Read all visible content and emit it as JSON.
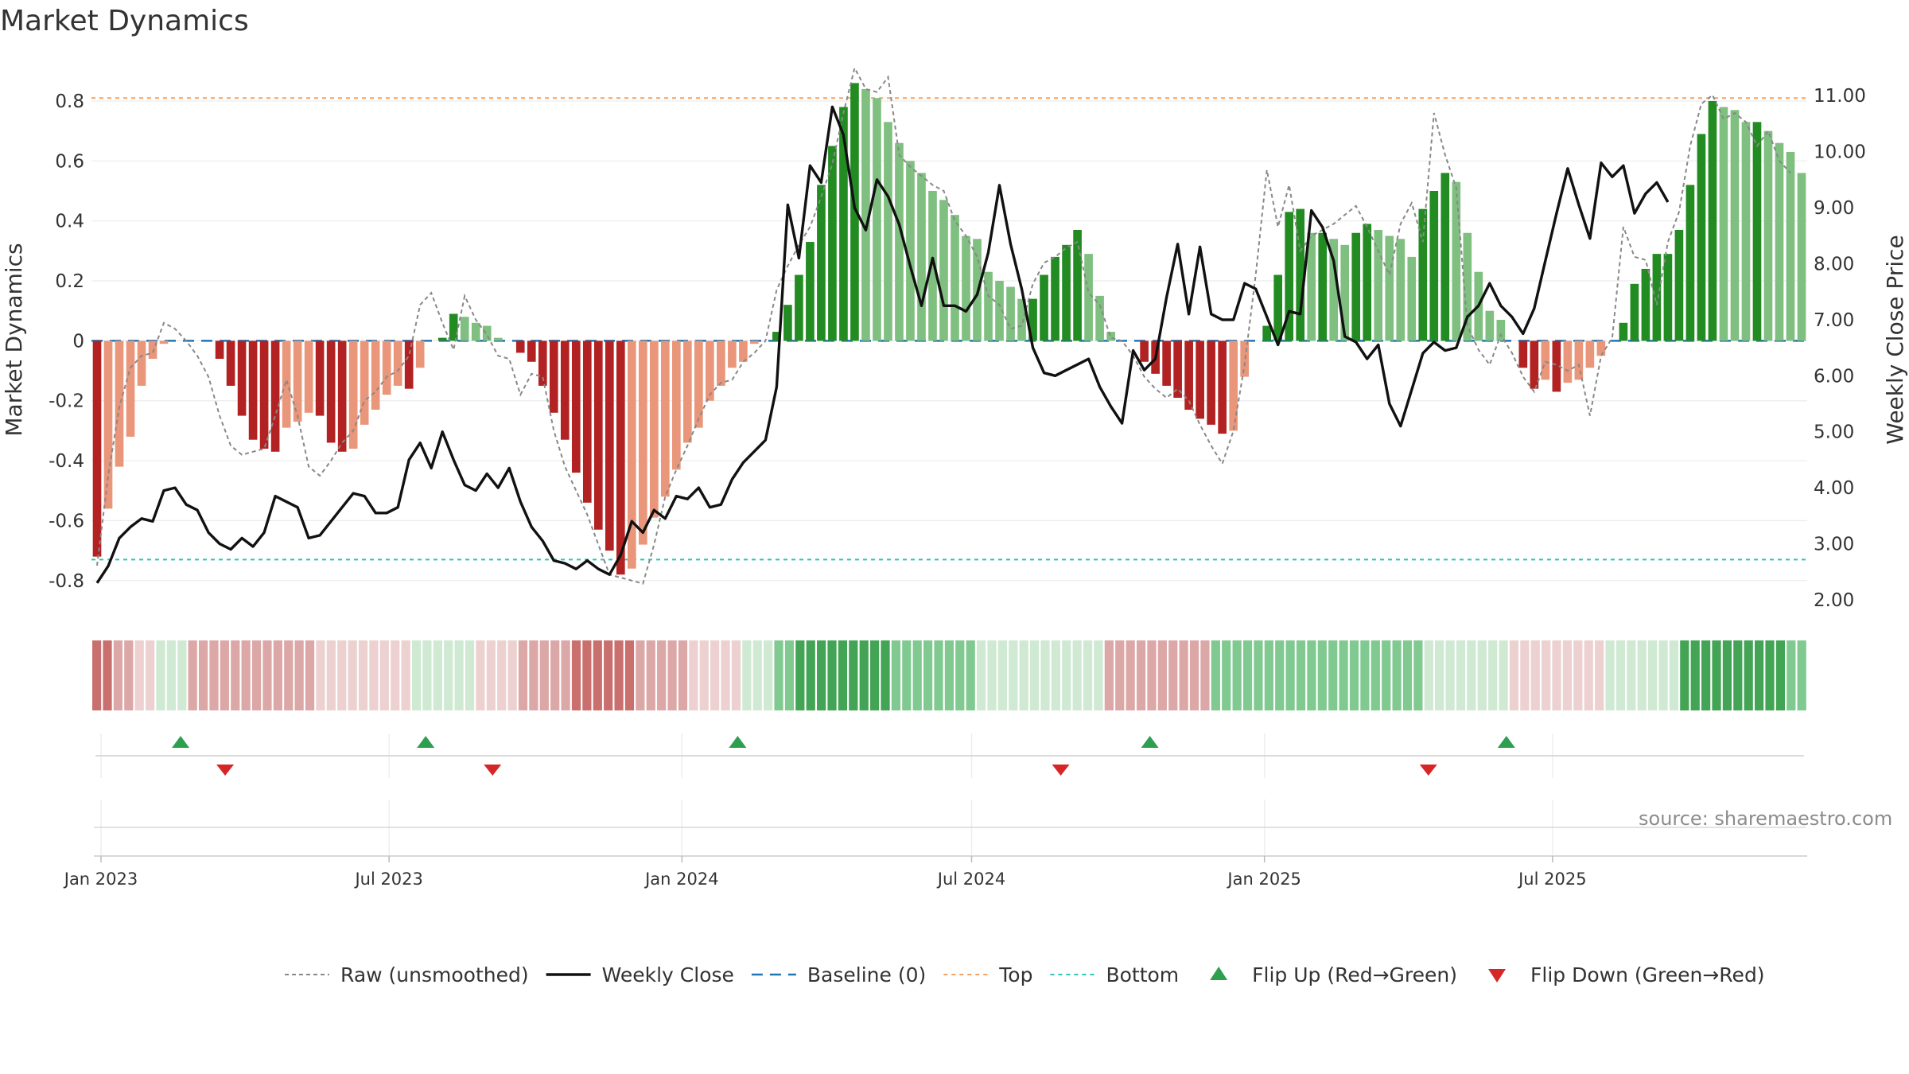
{
  "title": "Market Dynamics",
  "source": "source: sharemaestro.com",
  "chart_data": {
    "type": "bar",
    "title": "Market Dynamics",
    "ylabel": "Market Dynamics",
    "y2label": "Weekly Close Price",
    "ylim": [
      -0.92,
      0.93
    ],
    "y2lim": [
      1.7,
      11.6
    ],
    "yticks": [
      "-0.8",
      "-0.6",
      "-0.4",
      "-0.2",
      "0",
      "0.2",
      "0.4",
      "0.6",
      "0.8"
    ],
    "y2ticks": [
      "2.00",
      "3.00",
      "4.00",
      "5.00",
      "6.00",
      "7.00",
      "8.00",
      "9.00",
      "10.00",
      "11.00"
    ],
    "xticks": [
      "Jan 2023",
      "Jul 2023",
      "Jan 2024",
      "Jul 2024",
      "Jan 2025",
      "Jul 2025"
    ],
    "x_start": "2022-12-26",
    "week_days": 7,
    "top_level": 0.81,
    "bottom_level": -0.73,
    "baseline": 0,
    "grid": true,
    "legend_position": "bottom-center",
    "colors": {
      "red_strong": "#b22222",
      "red_light": "#e9967a",
      "green_strong": "#228b22",
      "green_light": "#7fbf7f",
      "close_line": "#111111",
      "raw_line": "#888888",
      "baseline": "#1f77b4",
      "top": "#f4a261",
      "bottom": "#2ec4b6",
      "flip_up": "#2e9e4f",
      "flip_down": "#d62728"
    },
    "dynamics": [
      -0.72,
      -0.56,
      -0.42,
      -0.32,
      -0.15,
      -0.06,
      -0.01,
      0.0,
      0.0,
      0.0,
      0.0,
      -0.06,
      -0.15,
      -0.25,
      -0.33,
      -0.36,
      -0.37,
      -0.29,
      -0.27,
      -0.24,
      -0.25,
      -0.34,
      -0.37,
      -0.36,
      -0.28,
      -0.23,
      -0.18,
      -0.15,
      -0.16,
      -0.09,
      0.0,
      0.01,
      0.09,
      0.08,
      0.06,
      0.05,
      0.01,
      0.0,
      -0.04,
      -0.07,
      -0.15,
      -0.24,
      -0.33,
      -0.44,
      -0.54,
      -0.63,
      -0.7,
      -0.78,
      -0.76,
      -0.68,
      -0.59,
      -0.52,
      -0.43,
      -0.34,
      -0.29,
      -0.2,
      -0.15,
      -0.09,
      -0.07,
      -0.01,
      0.0,
      0.03,
      0.12,
      0.22,
      0.33,
      0.52,
      0.65,
      0.78,
      0.86,
      0.84,
      0.81,
      0.73,
      0.66,
      0.6,
      0.56,
      0.5,
      0.47,
      0.42,
      0.35,
      0.34,
      0.23,
      0.2,
      0.18,
      0.14,
      0.14,
      0.22,
      0.28,
      0.32,
      0.37,
      0.29,
      0.15,
      0.03,
      0.0,
      0.0,
      -0.07,
      -0.11,
      -0.15,
      -0.19,
      -0.23,
      -0.26,
      -0.28,
      -0.31,
      -0.3,
      -0.12,
      0.0,
      0.05,
      0.22,
      0.43,
      0.44,
      0.36,
      0.36,
      0.34,
      0.32,
      0.36,
      0.39,
      0.37,
      0.35,
      0.34,
      0.28,
      0.44,
      0.5,
      0.56,
      0.53,
      0.36,
      0.23,
      0.1,
      0.07,
      0.0,
      -0.09,
      -0.16,
      -0.13,
      -0.17,
      -0.14,
      -0.13,
      -0.09,
      -0.05,
      0.0,
      0.06,
      0.19,
      0.24,
      0.29,
      0.29,
      0.37,
      0.52,
      0.69,
      0.8,
      0.78,
      0.77,
      0.73,
      0.73,
      0.7,
      0.66,
      0.63,
      0.56
    ],
    "raw": [
      -0.75,
      -0.45,
      -0.22,
      -0.09,
      -0.05,
      -0.04,
      0.06,
      0.04,
      0.0,
      -0.05,
      -0.12,
      -0.25,
      -0.35,
      -0.38,
      -0.37,
      -0.36,
      -0.25,
      -0.13,
      -0.25,
      -0.42,
      -0.45,
      -0.4,
      -0.34,
      -0.3,
      -0.2,
      -0.17,
      -0.12,
      -0.1,
      -0.05,
      0.12,
      0.16,
      0.06,
      -0.03,
      0.15,
      0.07,
      0.02,
      -0.05,
      -0.06,
      -0.18,
      -0.11,
      -0.12,
      -0.3,
      -0.42,
      -0.5,
      -0.58,
      -0.68,
      -0.78,
      -0.79,
      -0.8,
      -0.81,
      -0.68,
      -0.52,
      -0.43,
      -0.35,
      -0.26,
      -0.18,
      -0.14,
      -0.13,
      -0.07,
      -0.04,
      0.0,
      0.17,
      0.25,
      0.32,
      0.38,
      0.48,
      0.59,
      0.76,
      0.91,
      0.84,
      0.83,
      0.88,
      0.62,
      0.58,
      0.55,
      0.52,
      0.5,
      0.4,
      0.35,
      0.28,
      0.15,
      0.12,
      0.04,
      0.05,
      0.19,
      0.26,
      0.28,
      0.31,
      0.33,
      0.16,
      0.12,
      0.01,
      0.0,
      -0.05,
      -0.12,
      -0.16,
      -0.19,
      -0.16,
      -0.2,
      -0.28,
      -0.35,
      -0.41,
      -0.3,
      -0.08,
      0.22,
      0.57,
      0.38,
      0.52,
      0.3,
      0.35,
      0.37,
      0.39,
      0.42,
      0.45,
      0.38,
      0.3,
      0.22,
      0.39,
      0.46,
      0.33,
      0.76,
      0.62,
      0.51,
      0.05,
      -0.03,
      -0.08,
      0.02,
      -0.04,
      -0.12,
      -0.17,
      -0.07,
      -0.08,
      -0.1,
      -0.08,
      -0.25,
      -0.05,
      0.01,
      0.38,
      0.28,
      0.27,
      0.12,
      0.33,
      0.43,
      0.65,
      0.79,
      0.82,
      0.74,
      0.76,
      0.73,
      0.65,
      0.7,
      0.6,
      0.56
    ],
    "close": [
      2.3,
      2.6,
      3.1,
      3.3,
      3.45,
      3.4,
      3.95,
      4.0,
      3.7,
      3.6,
      3.2,
      3.0,
      2.9,
      3.1,
      2.95,
      3.2,
      3.85,
      3.75,
      3.65,
      3.1,
      3.15,
      3.4,
      3.65,
      3.9,
      3.85,
      3.55,
      3.55,
      3.65,
      4.5,
      4.8,
      4.35,
      5.0,
      4.5,
      4.05,
      3.95,
      4.25,
      4.0,
      4.35,
      3.75,
      3.3,
      3.05,
      2.7,
      2.65,
      2.55,
      2.7,
      2.55,
      2.45,
      2.8,
      3.4,
      3.2,
      3.6,
      3.45,
      3.85,
      3.8,
      4.0,
      3.65,
      3.7,
      4.15,
      4.45,
      4.65,
      4.85,
      5.8,
      9.05,
      8.1,
      9.75,
      9.45,
      10.8,
      10.3,
      9.0,
      8.6,
      9.5,
      9.2,
      8.7,
      7.95,
      7.25,
      8.1,
      7.25,
      7.25,
      7.15,
      7.45,
      8.2,
      9.4,
      8.35,
      7.55,
      6.5,
      6.05,
      6.0,
      6.1,
      6.2,
      6.3,
      5.8,
      5.45,
      5.15,
      6.45,
      6.1,
      6.3,
      7.4,
      8.35,
      7.1,
      8.3,
      7.1,
      7.0,
      7.0,
      7.65,
      7.55,
      7.05,
      6.55,
      7.15,
      7.1,
      8.95,
      8.65,
      8.05,
      6.7,
      6.6,
      6.3,
      6.55,
      5.5,
      5.1,
      5.75,
      6.4,
      6.6,
      6.45,
      6.5,
      7.05,
      7.25,
      7.65,
      7.25,
      7.05,
      6.75,
      7.2,
      8.05,
      8.9,
      9.7,
      9.05,
      8.45,
      9.8,
      9.55,
      9.75,
      8.9,
      9.25,
      9.45,
      9.1
    ],
    "heat_strip": [
      -3,
      -3,
      -2,
      -2,
      -1,
      -1,
      1,
      1,
      1,
      -2,
      -2,
      -2,
      -2,
      -2,
      -2,
      -2,
      -2,
      -2,
      -2,
      -2,
      -2,
      -1,
      -1,
      -1,
      -1,
      -1,
      -1,
      -1,
      -1,
      -1,
      1,
      1,
      1,
      1,
      1,
      1,
      -1,
      -1,
      -1,
      -1,
      -2,
      -2,
      -2,
      -2,
      -2,
      -3,
      -3,
      -3,
      -3,
      -3,
      -3,
      -2,
      -2,
      -2,
      -2,
      -2,
      -1,
      -1,
      -1,
      -1,
      -1,
      1,
      1,
      1,
      2,
      2,
      3,
      3,
      3,
      3,
      3,
      3,
      3,
      3,
      3,
      2,
      2,
      2,
      2,
      2,
      2,
      2,
      2,
      1,
      1,
      1,
      1,
      1,
      1,
      1,
      1,
      1,
      1,
      1,
      1,
      -2,
      -2,
      -2,
      -2,
      -2,
      -2,
      -2,
      -2,
      -2,
      -2,
      2,
      2,
      2,
      2,
      2,
      2,
      2,
      2,
      2,
      2,
      2,
      2,
      2,
      2,
      2,
      2,
      2,
      2,
      2,
      2,
      1,
      1,
      1,
      1,
      1,
      1,
      1,
      1,
      -1,
      -1,
      -1,
      -1,
      -1,
      -1,
      -1,
      -1,
      -1,
      1,
      1,
      1,
      1,
      1,
      1,
      1,
      3,
      3,
      3,
      3,
      3,
      3,
      3,
      3,
      3,
      3,
      2,
      2
    ],
    "flip_up": [
      "2023-02-20",
      "2023-07-24",
      "2024-02-05",
      "2024-10-21",
      "2025-06-02"
    ],
    "flip_down": [
      "2023-03-20",
      "2023-09-04",
      "2024-08-26",
      "2025-04-14"
    ],
    "legend": [
      {
        "label": "Raw (unsmoothed)",
        "kind": "raw"
      },
      {
        "label": "Weekly Close",
        "kind": "close"
      },
      {
        "label": "Baseline (0)",
        "kind": "baseline"
      },
      {
        "label": "Top",
        "kind": "top"
      },
      {
        "label": "Bottom",
        "kind": "bottom"
      },
      {
        "label": "Flip Up (Red→Green)",
        "kind": "flip_up"
      },
      {
        "label": "Flip Down (Green→Red)",
        "kind": "flip_down"
      }
    ]
  }
}
